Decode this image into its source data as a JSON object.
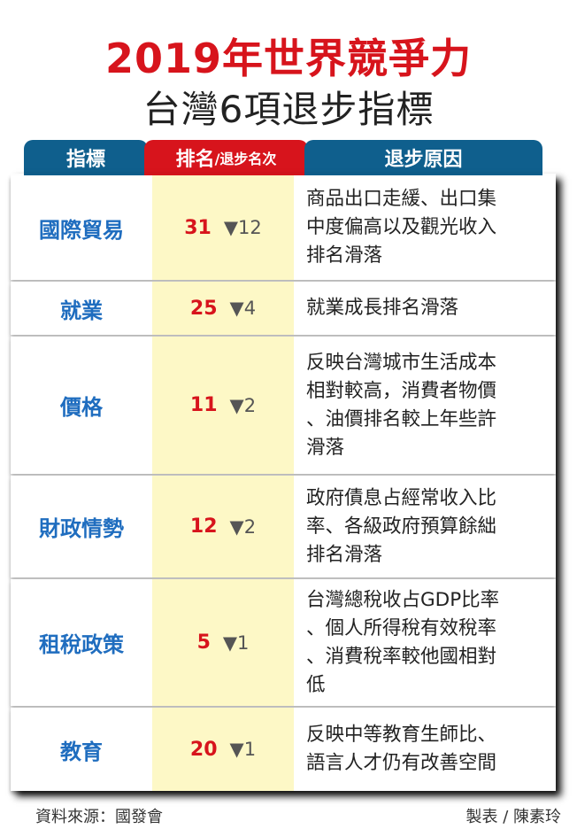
{
  "title": {
    "line1": "2019年世界競爭力",
    "line2": "台灣6項退步指標"
  },
  "header": {
    "indicator": "指標",
    "rank": "排名",
    "rank_sub": "/退步名次",
    "reason": "退步原因"
  },
  "rows": [
    {
      "indicator": "國際貿易",
      "rank": "31",
      "drop": "▼12",
      "reason": [
        "商品出口走緩、出口集",
        "中度偏高以及觀光收入",
        "排名滑落"
      ]
    },
    {
      "indicator": "就業",
      "rank": "25",
      "drop": "▼4",
      "reason": [
        "就業成長排名滑落"
      ]
    },
    {
      "indicator": "價格",
      "rank": "11",
      "drop": "▼2",
      "reason": [
        "反映台灣城市生活成本",
        "相對較高，消費者物價",
        "、油價排名較上年些許",
        "滑落"
      ]
    },
    {
      "indicator": "財政情勢",
      "rank": "12",
      "drop": "▼2",
      "reason": [
        "政府債息占經常收入比",
        "率、各級政府預算餘絀",
        "排名滑落"
      ]
    },
    {
      "indicator": "租稅政策",
      "rank": "5",
      "drop": "▼1",
      "reason": [
        "台灣總稅收占GDP比率",
        "、個人所得稅有效稅率",
        "、消費稅率較他國相對",
        "低"
      ]
    },
    {
      "indicator": "教育",
      "rank": "20",
      "drop": "▼1",
      "reason": [
        "反映中等教育生師比、",
        "語言人才仍有改善空間"
      ]
    }
  ],
  "footer": {
    "source": "資料來源：國發會",
    "author": "製表 / 陳素玲"
  },
  "colors": {
    "title_red": "#d7141c",
    "header_blue": "#0f5f8d",
    "indicator_blue": "#1f6dbf",
    "rank_column_bg": "#fdf8c6"
  }
}
